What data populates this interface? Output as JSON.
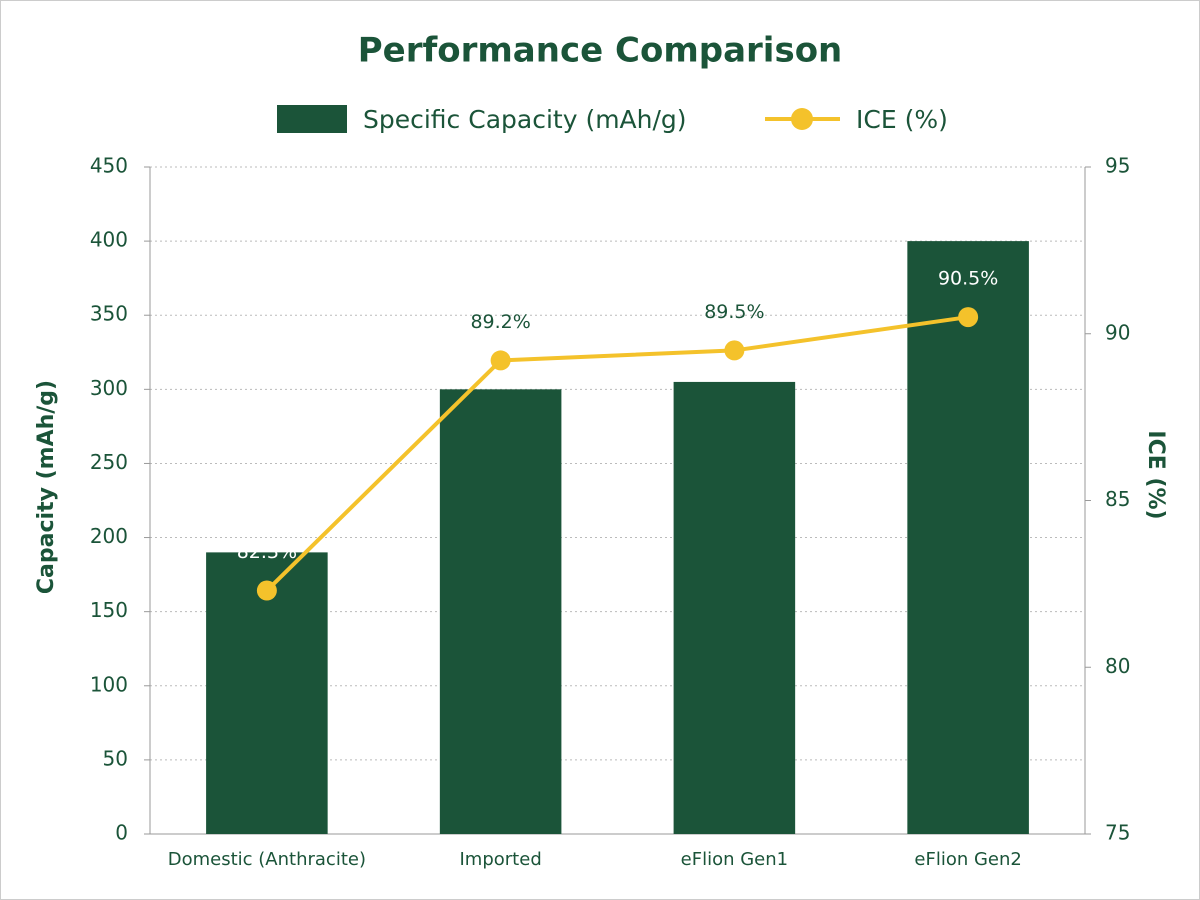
{
  "chart_data": {
    "type": "bar",
    "title": "Performance Comparison",
    "categories": [
      "Domestic (Anthracite)",
      "Imported",
      "eFlion Gen1",
      "eFlion Gen2"
    ],
    "series": [
      {
        "name": "Specific Capacity (mAh/g)",
        "type": "bar",
        "color": "#1b5439",
        "values": [
          190,
          300,
          305,
          400
        ]
      },
      {
        "name": "ICE (%)",
        "type": "line",
        "axis": "y2",
        "color": "#f4c22b",
        "values": [
          82.3,
          89.2,
          89.5,
          90.5
        ],
        "value_labels": [
          "82.3%",
          "89.2%",
          "89.5%",
          "90.5%"
        ]
      }
    ],
    "ylabel": "Capacity (mAh/g)",
    "y2label": "ICE (%)",
    "ylim": [
      0,
      450
    ],
    "yticks": [
      0,
      50,
      100,
      150,
      200,
      250,
      300,
      350,
      400,
      450
    ],
    "y2lim": [
      75,
      95
    ],
    "y2ticks": [
      75,
      80,
      85,
      90,
      95
    ],
    "grid": true,
    "legend": "top"
  }
}
